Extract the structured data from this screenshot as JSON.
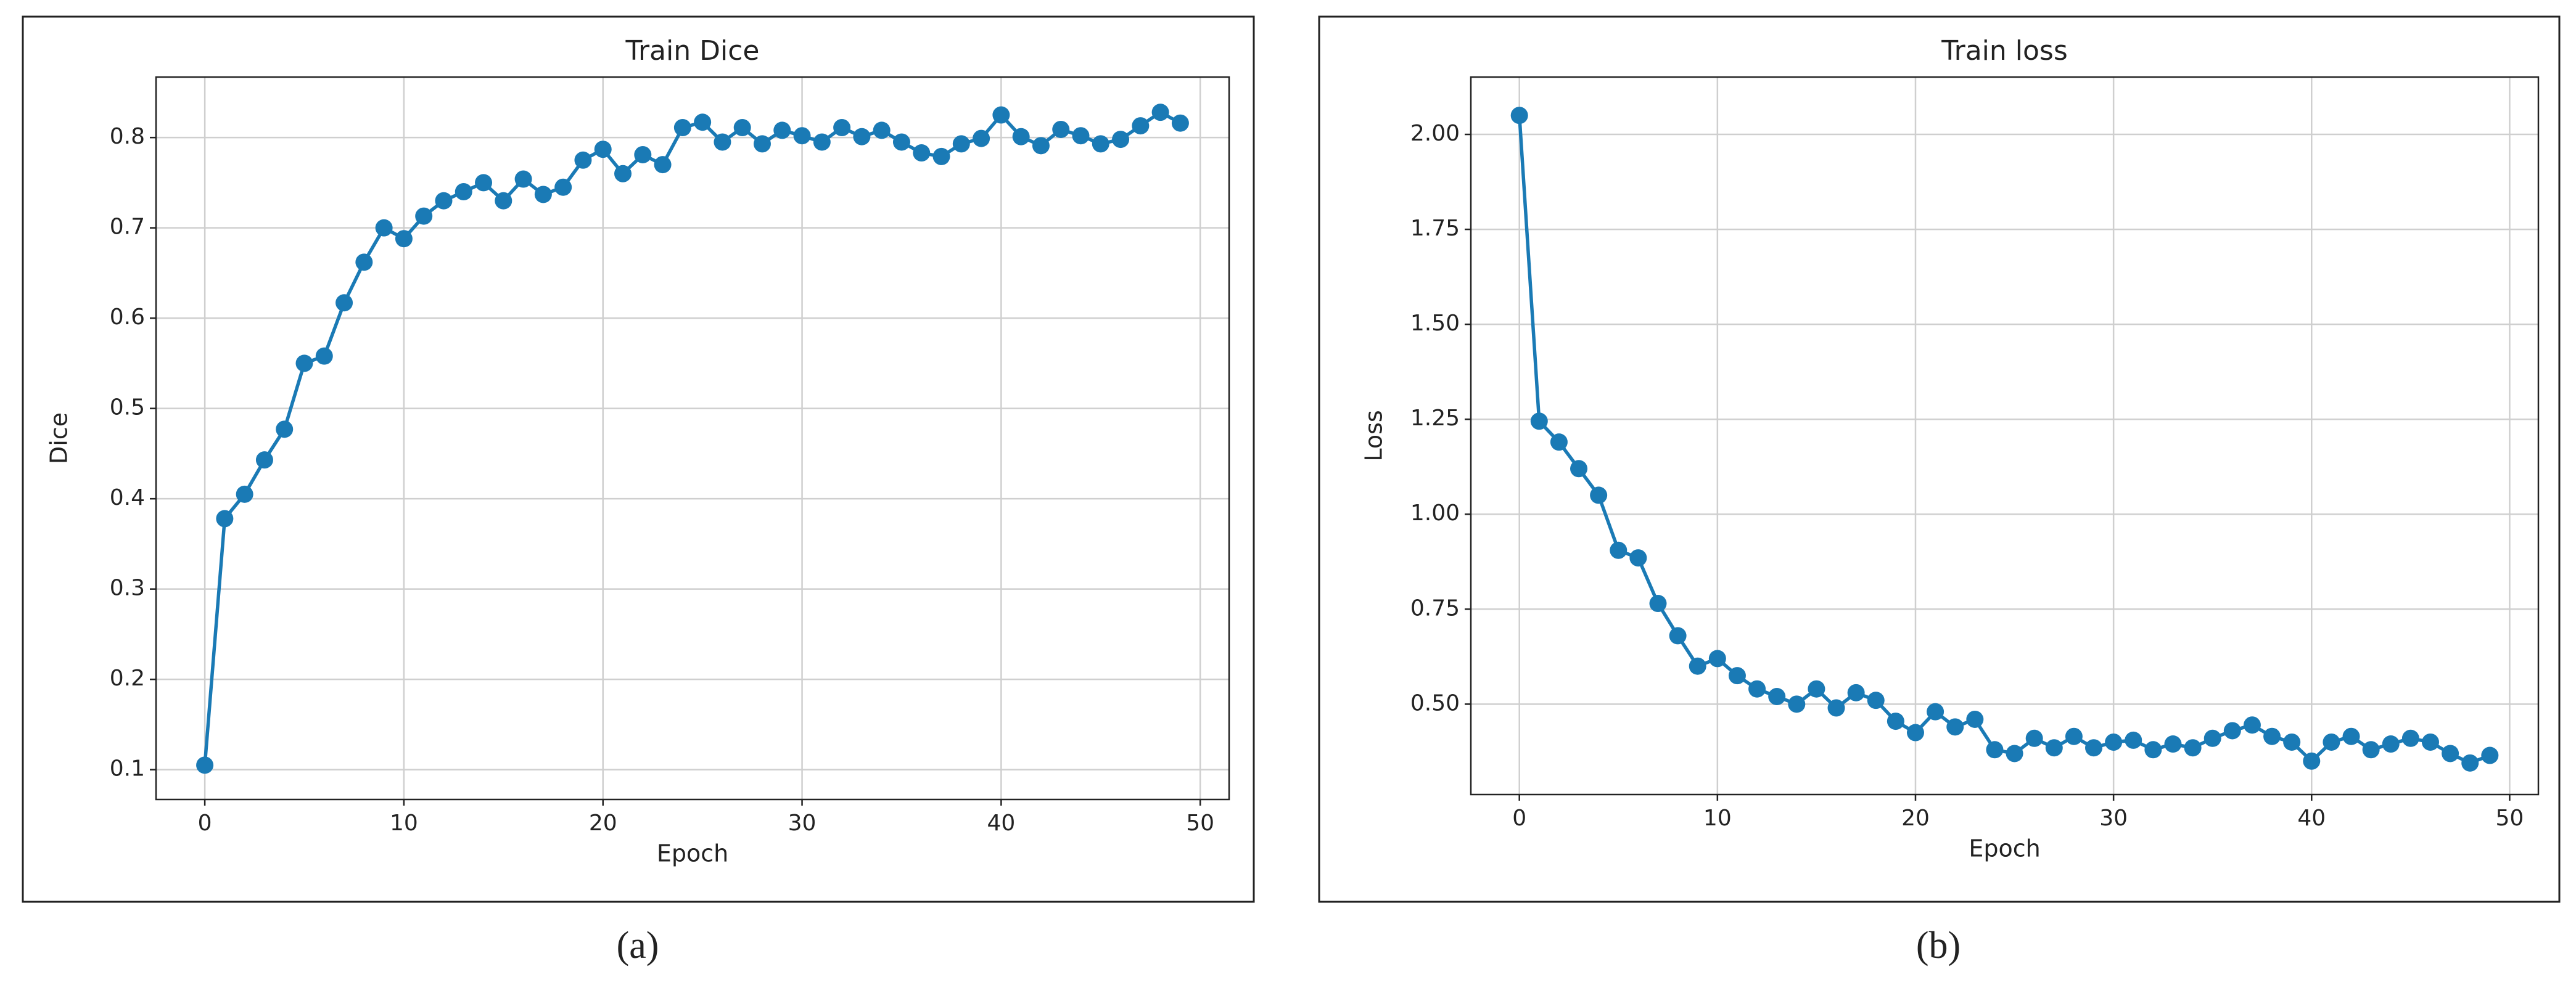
{
  "chart_data": [
    {
      "type": "line",
      "title": "Train Dice",
      "xlabel": "Epoch",
      "ylabel": "Dice",
      "caption": "(a)",
      "color": "#1a7ab5",
      "grid": true,
      "x": [
        0,
        1,
        2,
        3,
        4,
        5,
        6,
        7,
        8,
        9,
        10,
        11,
        12,
        13,
        14,
        15,
        16,
        17,
        18,
        19,
        20,
        21,
        22,
        23,
        24,
        25,
        26,
        27,
        28,
        29,
        30,
        31,
        32,
        33,
        34,
        35,
        36,
        37,
        38,
        39,
        40,
        41,
        42,
        43,
        44,
        45,
        46,
        47,
        48,
        49
      ],
      "values": [
        0.105,
        0.378,
        0.405,
        0.443,
        0.477,
        0.55,
        0.558,
        0.617,
        0.662,
        0.7,
        0.688,
        0.713,
        0.73,
        0.74,
        0.75,
        0.73,
        0.754,
        0.737,
        0.745,
        0.775,
        0.787,
        0.76,
        0.781,
        0.77,
        0.811,
        0.817,
        0.795,
        0.811,
        0.793,
        0.808,
        0.802,
        0.795,
        0.811,
        0.801,
        0.808,
        0.795,
        0.783,
        0.779,
        0.793,
        0.799,
        0.825,
        0.801,
        0.791,
        0.809,
        0.802,
        0.793,
        0.798,
        0.813,
        0.828,
        0.816
      ],
      "xlim": [
        -2.45,
        51.45
      ],
      "xticks": [
        0,
        10,
        20,
        30,
        40,
        50
      ],
      "ylim": [
        0.067,
        0.867
      ],
      "yticks": [
        0.1,
        0.2,
        0.3,
        0.4,
        0.5,
        0.6,
        0.7,
        0.8
      ]
    },
    {
      "type": "line",
      "title": "Train loss",
      "xlabel": "Epoch",
      "ylabel": "Loss",
      "caption": "(b)",
      "color": "#1a7ab5",
      "grid": true,
      "x": [
        0,
        1,
        2,
        3,
        4,
        5,
        6,
        7,
        8,
        9,
        10,
        11,
        12,
        13,
        14,
        15,
        16,
        17,
        18,
        19,
        20,
        21,
        22,
        23,
        24,
        25,
        26,
        27,
        28,
        29,
        30,
        31,
        32,
        33,
        34,
        35,
        36,
        37,
        38,
        39,
        40,
        41,
        42,
        43,
        44,
        45,
        46,
        47,
        48,
        49
      ],
      "values": [
        2.05,
        1.245,
        1.19,
        1.12,
        1.05,
        0.905,
        0.885,
        0.765,
        0.68,
        0.6,
        0.62,
        0.575,
        0.54,
        0.52,
        0.5,
        0.54,
        0.49,
        0.53,
        0.51,
        0.455,
        0.425,
        0.48,
        0.44,
        0.46,
        0.38,
        0.37,
        0.41,
        0.385,
        0.415,
        0.385,
        0.4,
        0.405,
        0.38,
        0.395,
        0.385,
        0.41,
        0.43,
        0.445,
        0.415,
        0.4,
        0.35,
        0.4,
        0.415,
        0.38,
        0.395,
        0.41,
        0.4,
        0.37,
        0.345,
        0.365
      ],
      "xlim": [
        -2.45,
        51.45
      ],
      "xticks": [
        0,
        10,
        20,
        30,
        40,
        50
      ],
      "ylim": [
        0.262,
        2.151
      ],
      "yticks": [
        {
          "value": 0.5,
          "label": "0.50"
        },
        {
          "value": 0.75,
          "label": "0.75"
        },
        {
          "value": 1,
          "label": "1.00"
        },
        {
          "value": 1.25,
          "label": "1.25"
        },
        {
          "value": 1.5,
          "label": "1.50"
        },
        {
          "value": 1.75,
          "label": "1.75"
        },
        {
          "value": 2,
          "label": "2.00"
        }
      ]
    }
  ]
}
